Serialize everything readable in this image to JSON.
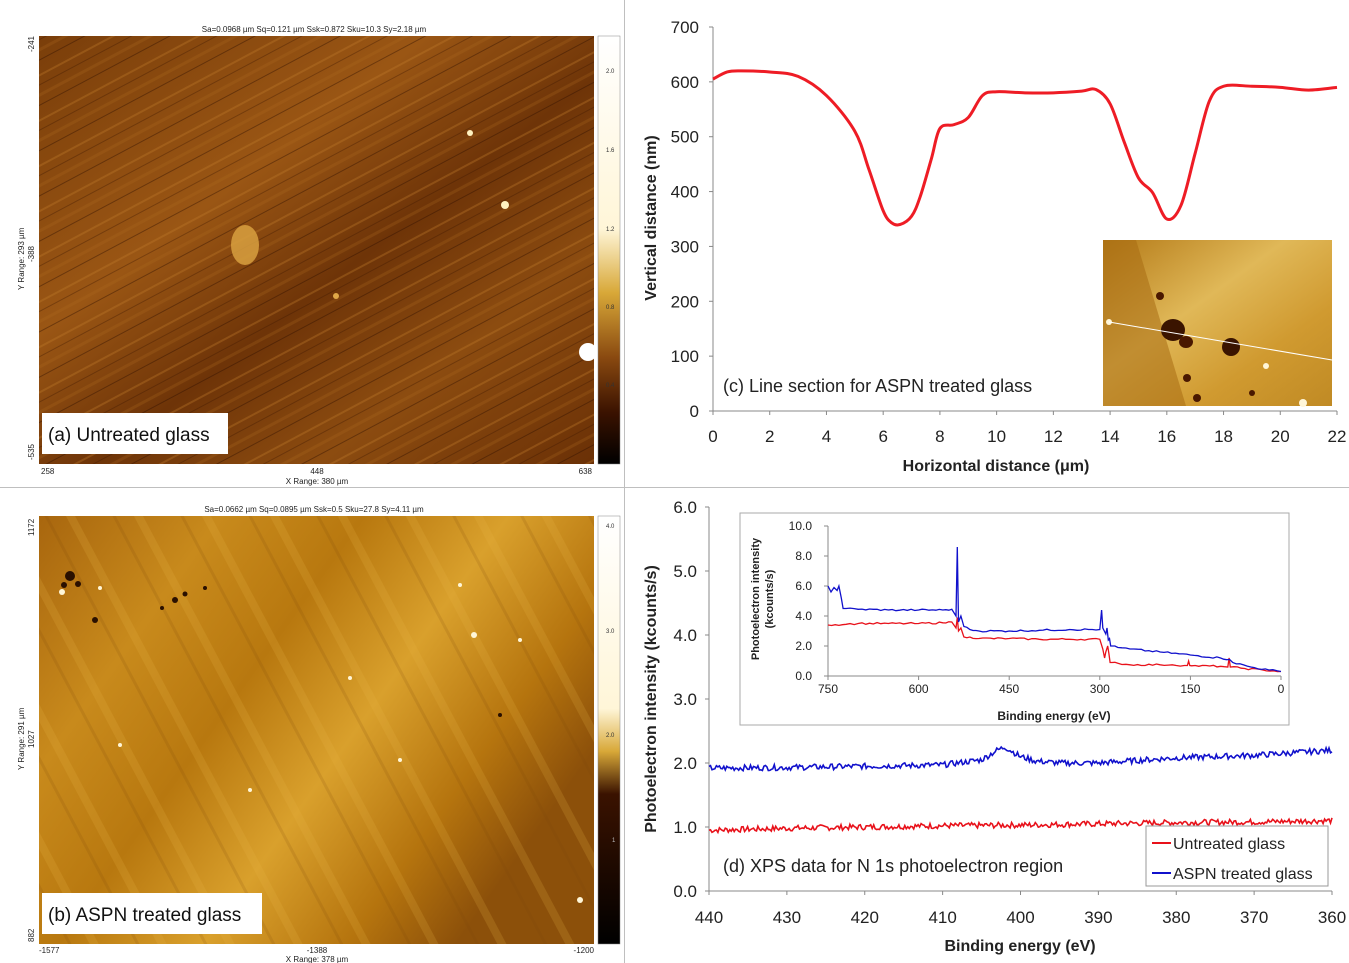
{
  "colors": {
    "untreated": "#e8111a",
    "aspn": "#1111cc",
    "line_section": "#ee1c25",
    "afm_dark": "#3a1200",
    "afm_mid": "#8a4a10",
    "afm_light": "#d8a838",
    "afm_bright": "#fff6d8"
  },
  "panel_a": {
    "stats": "Sa=0.0968 µm  Sq=0.121 µm  Ssk=0.872   Sku=10.3   Sy=2.18 µm",
    "x_ticks": [
      "258",
      "448",
      "638"
    ],
    "x_range": "X Range:  380 µm",
    "y_ticks": [
      "-241",
      "-388",
      "-535"
    ],
    "y_range": "Y Range:  293 µm",
    "cbar_ticks": [
      "2.0",
      "1.6",
      "1.2",
      "0.8",
      "0.4"
    ],
    "label": "(a) Untreated glass"
  },
  "panel_b": {
    "stats": "Sa=0.0662 µm  Sq=0.0895 µm  Ssk=0.5   Sku=27.8   Sy=4.11 µm",
    "x_ticks": [
      "-1577",
      "-1388",
      "-1200"
    ],
    "x_range": "X Range:  378 µm",
    "y_ticks": [
      "1172",
      "1027",
      "882"
    ],
    "y_range": "Y Range:  291 µm",
    "cbar_ticks": [
      "4.0",
      "3.0",
      "2.0",
      "1"
    ],
    "label": "(b)  ASPN treated glass"
  },
  "chart_data": [
    {
      "type": "line",
      "annotation": "(c) Line section for ASPN treated glass",
      "xlabel": "Horizontal distance (μm)",
      "ylabel": "Vertical distance (nm)",
      "xlim": [
        0,
        22
      ],
      "ylim": [
        0,
        700
      ],
      "x_ticks": [
        "0",
        "2",
        "4",
        "6",
        "8",
        "10",
        "12",
        "14",
        "16",
        "18",
        "20",
        "22"
      ],
      "y_ticks": [
        "0",
        "100",
        "200",
        "300",
        "400",
        "500",
        "600",
        "700"
      ],
      "grid": false,
      "series": [
        {
          "x": [
            0,
            0.5,
            1,
            2,
            3,
            4,
            5,
            5.5,
            6,
            6.3,
            6.6,
            7,
            7.3,
            7.7,
            8,
            8.5,
            9,
            9.5,
            10,
            11,
            12,
            13,
            13.5,
            14,
            14.5,
            15,
            15.5,
            16,
            16.5,
            17,
            17.5,
            18,
            19,
            20,
            21,
            22
          ],
          "values": [
            605,
            618,
            620,
            618,
            610,
            575,
            510,
            440,
            365,
            343,
            340,
            355,
            390,
            460,
            515,
            522,
            535,
            575,
            582,
            580,
            580,
            583,
            586,
            560,
            490,
            425,
            398,
            350,
            375,
            470,
            565,
            592,
            592,
            590,
            585,
            590
          ]
        }
      ]
    },
    {
      "type": "line",
      "annotation": "(d) XPS data for N 1s photoelectron region",
      "xlabel": "Binding energy (eV)",
      "ylabel": "Photoelectron intensity (kcounts/s)",
      "xlim": [
        440,
        360
      ],
      "ylim": [
        0,
        6
      ],
      "x_ticks": [
        "440",
        "430",
        "420",
        "410",
        "400",
        "390",
        "380",
        "370",
        "360"
      ],
      "y_ticks": [
        "0.0",
        "1.0",
        "2.0",
        "3.0",
        "4.0",
        "5.0",
        "6.0"
      ],
      "grid": false,
      "legend_position": "bottom-right",
      "series": [
        {
          "name": "Untreated glass",
          "x": [
            440,
            430,
            420,
            410,
            400,
            390,
            380,
            370,
            360
          ],
          "values": [
            0.95,
            0.98,
            1.0,
            1.02,
            1.03,
            1.05,
            1.07,
            1.08,
            1.1
          ]
        },
        {
          "name": "ASPN treated glass",
          "x": [
            440,
            430,
            420,
            410,
            405,
            403,
            402,
            400,
            398,
            395,
            390,
            380,
            370,
            360
          ],
          "values": [
            1.92,
            1.93,
            1.95,
            1.97,
            2.05,
            2.2,
            2.25,
            2.1,
            2.03,
            2.0,
            2.0,
            2.08,
            2.12,
            2.2
          ]
        }
      ],
      "inset": {
        "type": "line",
        "xlabel": "Binding energy (eV)",
        "ylabel": "Photoelectron intensity\n(kcounts/s)",
        "ylabel_lines": [
          "Photoelectron intensity",
          "(kcounts/s)"
        ],
        "xlim": [
          750,
          0
        ],
        "ylim": [
          0,
          10
        ],
        "x_ticks": [
          "750",
          "600",
          "450",
          "300",
          "150",
          "0"
        ],
        "y_ticks": [
          "0.0",
          "2.0",
          "4.0",
          "6.0",
          "8.0",
          "10.0"
        ],
        "series": [
          {
            "name": "Untreated glass",
            "x": [
              750,
              720,
              700,
              650,
              600,
              560,
              545,
              538,
              536,
              534,
              530,
              525,
              515,
              500,
              450,
              400,
              350,
              300,
              295,
              292,
              290,
              287,
              285,
              283,
              280,
              270,
              250,
              200,
              180,
              160,
              155,
              153,
              151,
              148,
              100,
              88,
              86,
              84,
              60,
              30,
              0
            ],
            "values": [
              3.4,
              3.45,
              3.5,
              3.5,
              3.5,
              3.55,
              3.6,
              3.2,
              3.9,
              3.0,
              3.2,
              2.6,
              2.6,
              2.5,
              2.5,
              2.45,
              2.45,
              2.45,
              1.8,
              1.2,
              1.6,
              2.0,
              1.5,
              0.9,
              0.9,
              0.85,
              0.75,
              0.75,
              0.75,
              0.7,
              0.7,
              1.0,
              0.7,
              0.68,
              0.65,
              0.6,
              1.2,
              0.6,
              0.5,
              0.4,
              0.3
            ]
          },
          {
            "name": "ASPN treated glass",
            "x": [
              750,
              745,
              740,
              735,
              732,
              728,
              725,
              720,
              700,
              650,
              600,
              560,
              545,
              538,
              536,
              534,
              530,
              525,
              515,
              500,
              450,
              400,
              350,
              300,
              297,
              295,
              290,
              288,
              286,
              284,
              282,
              280,
              270,
              250,
              200,
              150,
              100,
              85,
              80,
              50,
              20,
              0
            ],
            "values": [
              6.0,
              5.6,
              5.9,
              5.7,
              6.0,
              5.2,
              4.5,
              4.5,
              4.45,
              4.4,
              4.4,
              4.4,
              4.45,
              4.0,
              8.6,
              3.6,
              4.0,
              3.3,
              3.1,
              3.0,
              3.0,
              3.05,
              3.1,
              3.1,
              4.4,
              3.2,
              2.8,
              3.2,
              2.4,
              2.5,
              2.0,
              2.0,
              1.9,
              1.8,
              1.6,
              1.4,
              1.2,
              1.1,
              0.9,
              0.6,
              0.4,
              0.3
            ]
          }
        ]
      }
    }
  ]
}
